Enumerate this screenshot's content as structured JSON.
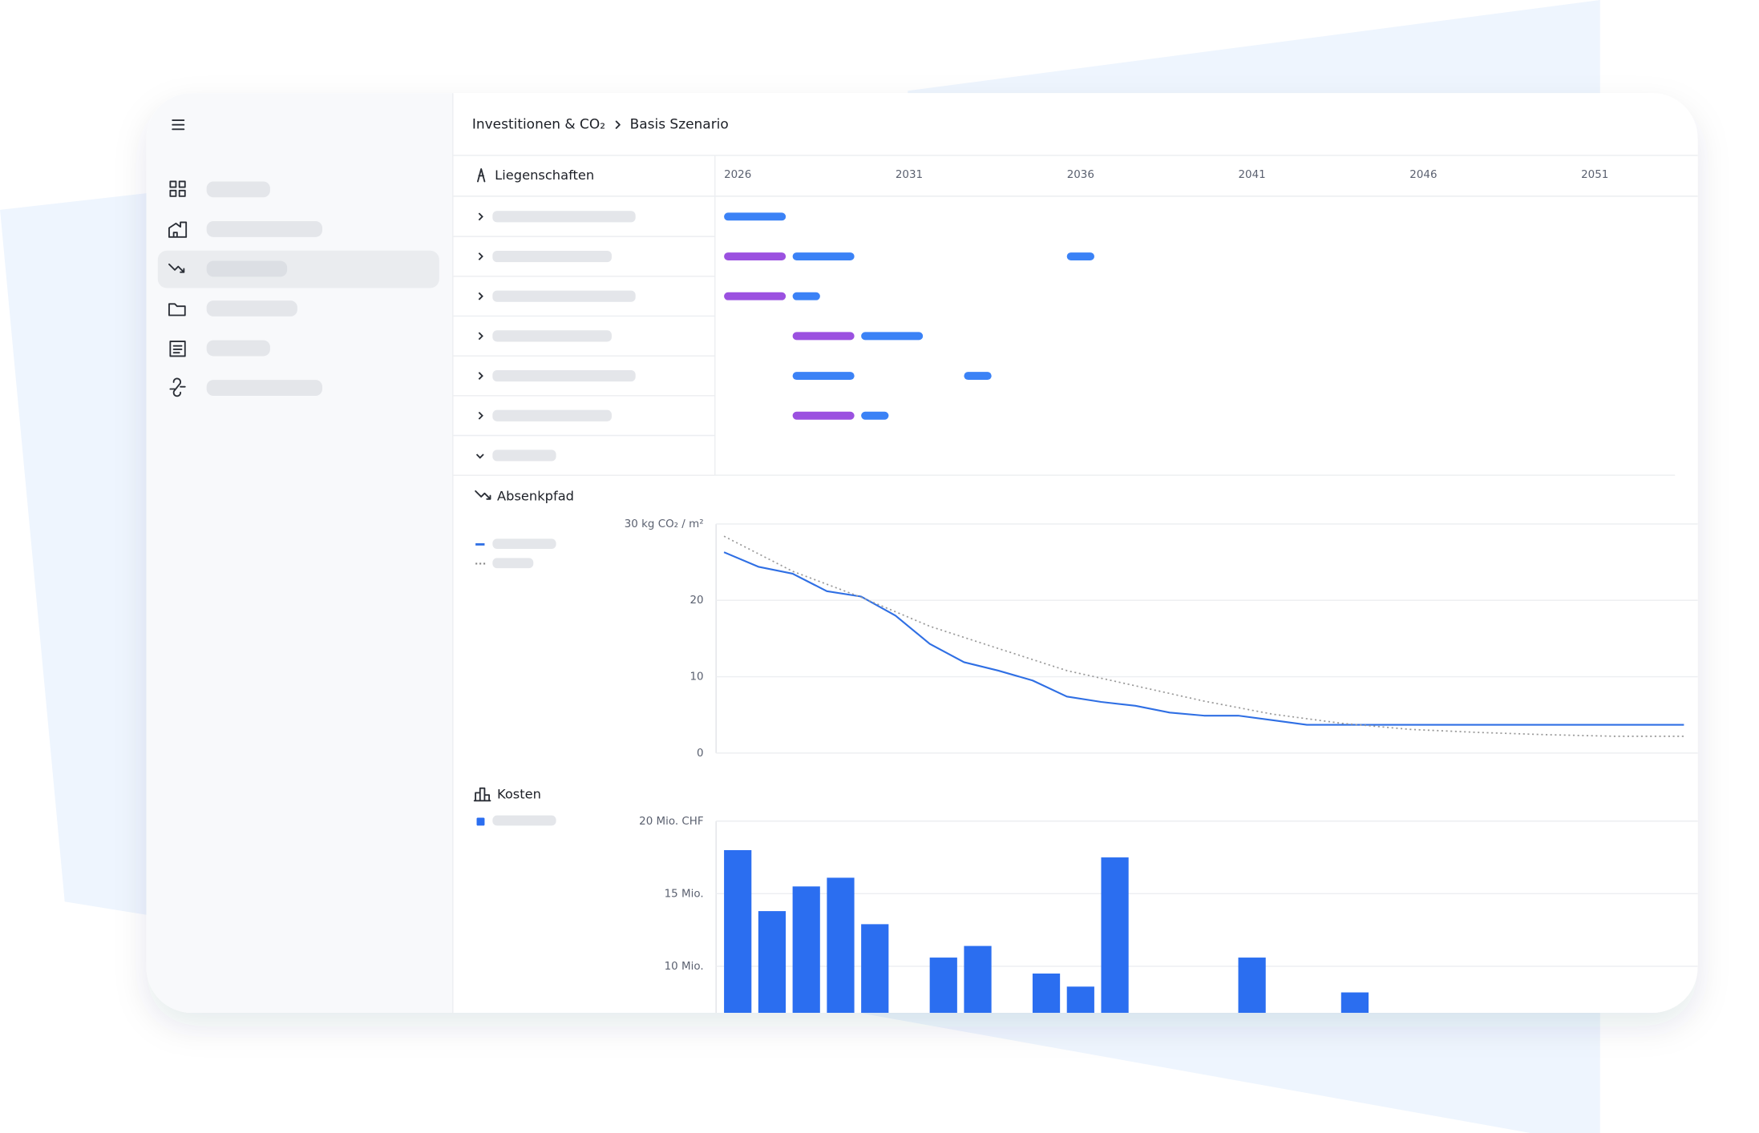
{
  "breadcrumb": [
    "Investitionen & CO₂",
    "Basis Szenario"
  ],
  "sections": {
    "properties": "Liegenschaften",
    "path": "Absenkpfad",
    "costs": "Kosten"
  },
  "chart_data": [
    {
      "type": "gantt",
      "xlim": [
        2026,
        2054.4
      ],
      "xticks": [
        2026,
        2031,
        2036,
        2041,
        2046,
        2051
      ],
      "rows": [
        {
          "bars": [
            {
              "start": 2026,
              "end": 2028,
              "color": "#3b82f6"
            }
          ]
        },
        {
          "bars": [
            {
              "start": 2026,
              "end": 2028,
              "color": "#9b51e0"
            },
            {
              "start": 2028,
              "end": 2030,
              "color": "#3b82f6"
            },
            {
              "start": 2036,
              "end": 2037,
              "color": "#3b82f6"
            }
          ]
        },
        {
          "bars": [
            {
              "start": 2026,
              "end": 2028,
              "color": "#9b51e0"
            },
            {
              "start": 2028,
              "end": 2029,
              "color": "#3b82f6"
            }
          ]
        },
        {
          "bars": [
            {
              "start": 2028,
              "end": 2030,
              "color": "#9b51e0"
            },
            {
              "start": 2030,
              "end": 2032,
              "color": "#3b82f6"
            }
          ]
        },
        {
          "bars": [
            {
              "start": 2028,
              "end": 2030,
              "color": "#3b82f6"
            },
            {
              "start": 2033,
              "end": 2034,
              "color": "#3b82f6"
            }
          ]
        },
        {
          "bars": [
            {
              "start": 2028,
              "end": 2030,
              "color": "#9b51e0"
            },
            {
              "start": 2030,
              "end": 2031,
              "color": "#3b82f6"
            }
          ]
        },
        {
          "bars": []
        }
      ]
    },
    {
      "type": "line",
      "xlim": [
        2026,
        2054.4
      ],
      "ylim": [
        0,
        30
      ],
      "grid": true,
      "yticks": [
        0,
        10,
        20,
        {
          "value": 30,
          "label": "30 kg CO₂ / m²"
        }
      ],
      "series": [
        {
          "color": "#2f6fe4",
          "style": "solid",
          "x": [
            2026,
            2027,
            2028,
            2029,
            2030,
            2031,
            2032,
            2033,
            2034,
            2035,
            2036,
            2037,
            2038,
            2039,
            2040,
            2041,
            2042,
            2043,
            2044,
            2045,
            2046,
            2047,
            2048,
            2049,
            2050,
            2051,
            2052,
            2053,
            2054
          ],
          "values": [
            26.3,
            24.4,
            23.5,
            21.2,
            20.5,
            18.0,
            14.3,
            11.9,
            10.8,
            9.5,
            7.4,
            6.7,
            6.2,
            5.3,
            4.9,
            4.9,
            4.3,
            3.7,
            3.7,
            3.7,
            3.7,
            3.7,
            3.7,
            3.7,
            3.7,
            3.7,
            3.7,
            3.7,
            3.7
          ]
        },
        {
          "color": "#9a9a9a",
          "style": "dotted",
          "x": [
            2026,
            2028,
            2030,
            2032,
            2034,
            2036,
            2038,
            2040,
            2042,
            2044,
            2046,
            2048,
            2050,
            2052,
            2054
          ],
          "values": [
            28.4,
            23.8,
            20.4,
            16.6,
            13.7,
            10.8,
            8.8,
            6.8,
            5.1,
            3.9,
            3.1,
            2.7,
            2.4,
            2.2,
            2.2
          ]
        }
      ]
    },
    {
      "type": "bar",
      "xlim": [
        2026,
        2054.4
      ],
      "ylim": [
        0,
        20
      ],
      "grid": true,
      "color": "#2b6ef0",
      "yticks": [
        {
          "value": 10,
          "label": "10 Mio."
        },
        {
          "value": 15,
          "label": "15 Mio."
        },
        {
          "value": 20,
          "label": "20 Mio. CHF"
        }
      ],
      "x": [
        2026,
        2027,
        2028,
        2029,
        2030,
        2032,
        2033,
        2035,
        2036,
        2037,
        2041,
        2044
      ],
      "values": [
        18,
        13.8,
        15.5,
        16.1,
        12.9,
        10.6,
        11.4,
        9.5,
        8.6,
        17.5,
        10.6,
        8.2
      ]
    }
  ]
}
